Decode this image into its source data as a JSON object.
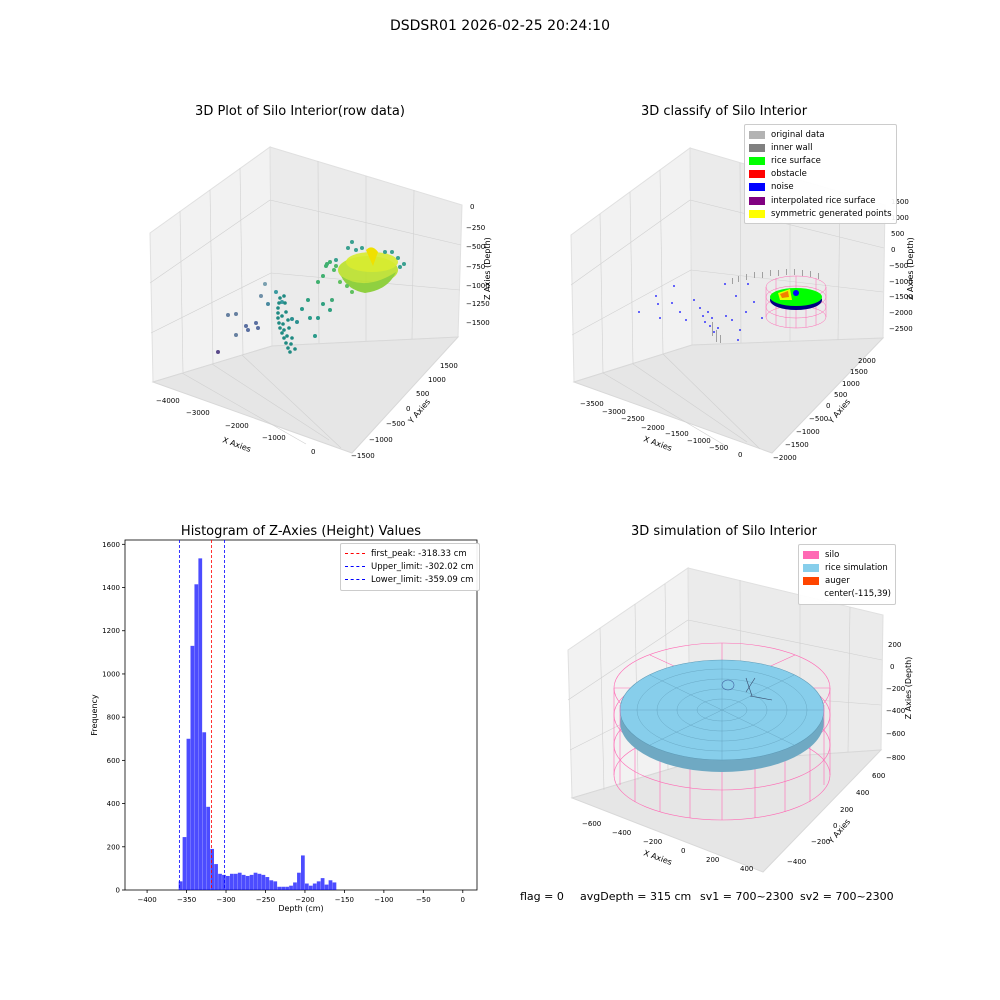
{
  "suptitle": "DSDSR01 2026-02-25 20:24:10",
  "panels": {
    "raw": {
      "title": "3D Plot of Silo Interior(row data)",
      "xlabel": "X Axies",
      "ylabel": "Y Axies",
      "zlabel": "Z Axies (Depth)",
      "xticks": [
        "−4000",
        "−3000",
        "−2000",
        "−1000",
        "0"
      ],
      "yticks": [
        "−1500",
        "−1000",
        "−500",
        "0",
        "500",
        "1000",
        "1500"
      ],
      "zticks": [
        "0",
        "−250",
        "−500",
        "−750",
        "−1000",
        "−1250",
        "−1500"
      ]
    },
    "classify": {
      "title": "3D classify of Silo Interior",
      "xlabel": "X Axies",
      "ylabel": "Y Axies",
      "zlabel": "Z Axies (Depth)",
      "xticks": [
        "−3500",
        "−3000",
        "−2500",
        "−2000",
        "−1500",
        "−1000",
        "−500",
        "0"
      ],
      "yticks": [
        "−2000",
        "−1500",
        "−1000",
        "−500",
        "0",
        "500",
        "1000",
        "1500",
        "2000"
      ],
      "zticks": [
        "1500",
        "1000",
        "500",
        "0",
        "−500",
        "−1000",
        "−1500",
        "−2000",
        "−2500"
      ],
      "legend": [
        {
          "label": "original data",
          "color": "#b3b3b3"
        },
        {
          "label": "inner wall",
          "color": "#808080"
        },
        {
          "label": "rice surface",
          "color": "#00ff00"
        },
        {
          "label": "obstacle",
          "color": "#ff0000"
        },
        {
          "label": "noise",
          "color": "#0000ff"
        },
        {
          "label": "interpolated rice surface",
          "color": "#800080"
        },
        {
          "label": "symmetric generated points",
          "color": "#ffff00"
        }
      ]
    },
    "sim": {
      "title": "3D simulation of Silo Interior",
      "xlabel": "X Axies",
      "ylabel": "Y Axies",
      "zlabel": "Z Axies (Depth)",
      "xticks": [
        "−600",
        "−400",
        "−200",
        "0",
        "200",
        "400"
      ],
      "yticks": [
        "−400",
        "−200",
        "0",
        "200",
        "400",
        "600"
      ],
      "zticks": [
        "200",
        "0",
        "−200",
        "−400",
        "−600",
        "−800"
      ],
      "legend": [
        {
          "label": "silo",
          "color": "#ff69b4"
        },
        {
          "label": "rice simulation",
          "color": "#87ceeb"
        },
        {
          "label": "auger",
          "color": "#ff4500"
        },
        {
          "label": "center(-115,39)",
          "color": "none"
        }
      ]
    }
  },
  "footer": {
    "flag": "flag = 0",
    "avg": "avgDepth = 315 cm",
    "sv1": "sv1 = 700~2300",
    "sv2": "sv2 = 700~2300"
  },
  "chart_data": {
    "type": "bar",
    "title": "Histogram of Z-Axies (Height) Values",
    "xlabel": "Depth (cm)",
    "ylabel": "Frequency",
    "xlim": [
      -428,
      18
    ],
    "ylim": [
      0,
      1620
    ],
    "xticks": [
      -400,
      -350,
      -300,
      -250,
      -200,
      -150,
      -100,
      -50,
      0
    ],
    "yticks": [
      0,
      200,
      400,
      600,
      800,
      1000,
      1200,
      1400,
      1600
    ],
    "bar_color": "#0000ff",
    "bin_width": 5,
    "bins": [
      {
        "x0": -360,
        "v": 40
      },
      {
        "x0": -355,
        "v": 245
      },
      {
        "x0": -350,
        "v": 700
      },
      {
        "x0": -345,
        "v": 1130
      },
      {
        "x0": -340,
        "v": 1415
      },
      {
        "x0": -335,
        "v": 1535
      },
      {
        "x0": -330,
        "v": 730
      },
      {
        "x0": -325,
        "v": 385
      },
      {
        "x0": -320,
        "v": 190
      },
      {
        "x0": -315,
        "v": 120
      },
      {
        "x0": -310,
        "v": 75
      },
      {
        "x0": -305,
        "v": 70
      },
      {
        "x0": -300,
        "v": 65
      },
      {
        "x0": -295,
        "v": 75
      },
      {
        "x0": -290,
        "v": 75
      },
      {
        "x0": -285,
        "v": 80
      },
      {
        "x0": -280,
        "v": 70
      },
      {
        "x0": -275,
        "v": 65
      },
      {
        "x0": -270,
        "v": 70
      },
      {
        "x0": -265,
        "v": 80
      },
      {
        "x0": -260,
        "v": 75
      },
      {
        "x0": -255,
        "v": 70
      },
      {
        "x0": -250,
        "v": 60
      },
      {
        "x0": -245,
        "v": 45
      },
      {
        "x0": -240,
        "v": 40
      },
      {
        "x0": -235,
        "v": 15
      },
      {
        "x0": -230,
        "v": 15
      },
      {
        "x0": -225,
        "v": 15
      },
      {
        "x0": -220,
        "v": 20
      },
      {
        "x0": -215,
        "v": 35
      },
      {
        "x0": -210,
        "v": 80
      },
      {
        "x0": -205,
        "v": 160
      },
      {
        "x0": -200,
        "v": 30
      },
      {
        "x0": -195,
        "v": 20
      },
      {
        "x0": -190,
        "v": 30
      },
      {
        "x0": -185,
        "v": 40
      },
      {
        "x0": -180,
        "v": 55
      },
      {
        "x0": -175,
        "v": 25
      },
      {
        "x0": -170,
        "v": 45
      },
      {
        "x0": -165,
        "v": 35
      },
      {
        "x0": -160,
        "v": 0
      },
      {
        "x0": -155,
        "v": 0
      },
      {
        "x0": -150,
        "v": 0
      },
      {
        "x0": -145,
        "v": 0
      },
      {
        "x0": -140,
        "v": 0
      },
      {
        "x0": -135,
        "v": 0
      }
    ],
    "vlines": [
      {
        "label": "first_peak: -318.33 cm",
        "x": -318.33,
        "color": "#ff0000"
      },
      {
        "label": "Upper_limit: -302.02 cm",
        "x": -302.02,
        "color": "#0000ff"
      },
      {
        "label": "Lower_limit: -359.09 cm",
        "x": -359.09,
        "color": "#0000ff"
      }
    ]
  }
}
